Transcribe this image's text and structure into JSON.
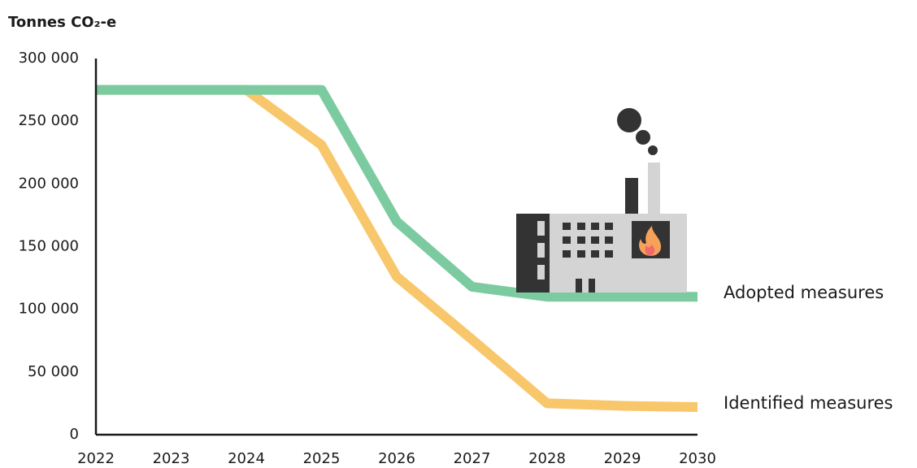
{
  "chart_data": {
    "type": "line",
    "title": "Tonnes CO₂-e",
    "x": [
      2022,
      2023,
      2024,
      2025,
      2026,
      2027,
      2028,
      2029,
      2030
    ],
    "xlim": [
      2022,
      2030
    ],
    "xticks": [
      2022,
      2023,
      2024,
      2025,
      2026,
      2027,
      2028,
      2029,
      2030
    ],
    "ylim": [
      0,
      300000
    ],
    "yticks": [
      {
        "value": 0,
        "label": "0"
      },
      {
        "value": 50000,
        "label": "50 000"
      },
      {
        "value": 100000,
        "label": "100 000"
      },
      {
        "value": 150000,
        "label": "150 000"
      },
      {
        "value": 200000,
        "label": "200 000"
      },
      {
        "value": 250000,
        "label": "250 000"
      },
      {
        "value": 300000,
        "label": "300 000"
      }
    ],
    "grid": false,
    "series": [
      {
        "name": "Identified measures",
        "color": "#f9c76b",
        "values": [
          275000,
          275000,
          275000,
          231000,
          126000,
          76000,
          25000,
          23000,
          22000
        ]
      },
      {
        "name": "Adopted measures",
        "color": "#7ccba0",
        "values": [
          275000,
          275000,
          275000,
          275000,
          170000,
          118000,
          110000,
          110000,
          110000
        ]
      }
    ]
  }
}
